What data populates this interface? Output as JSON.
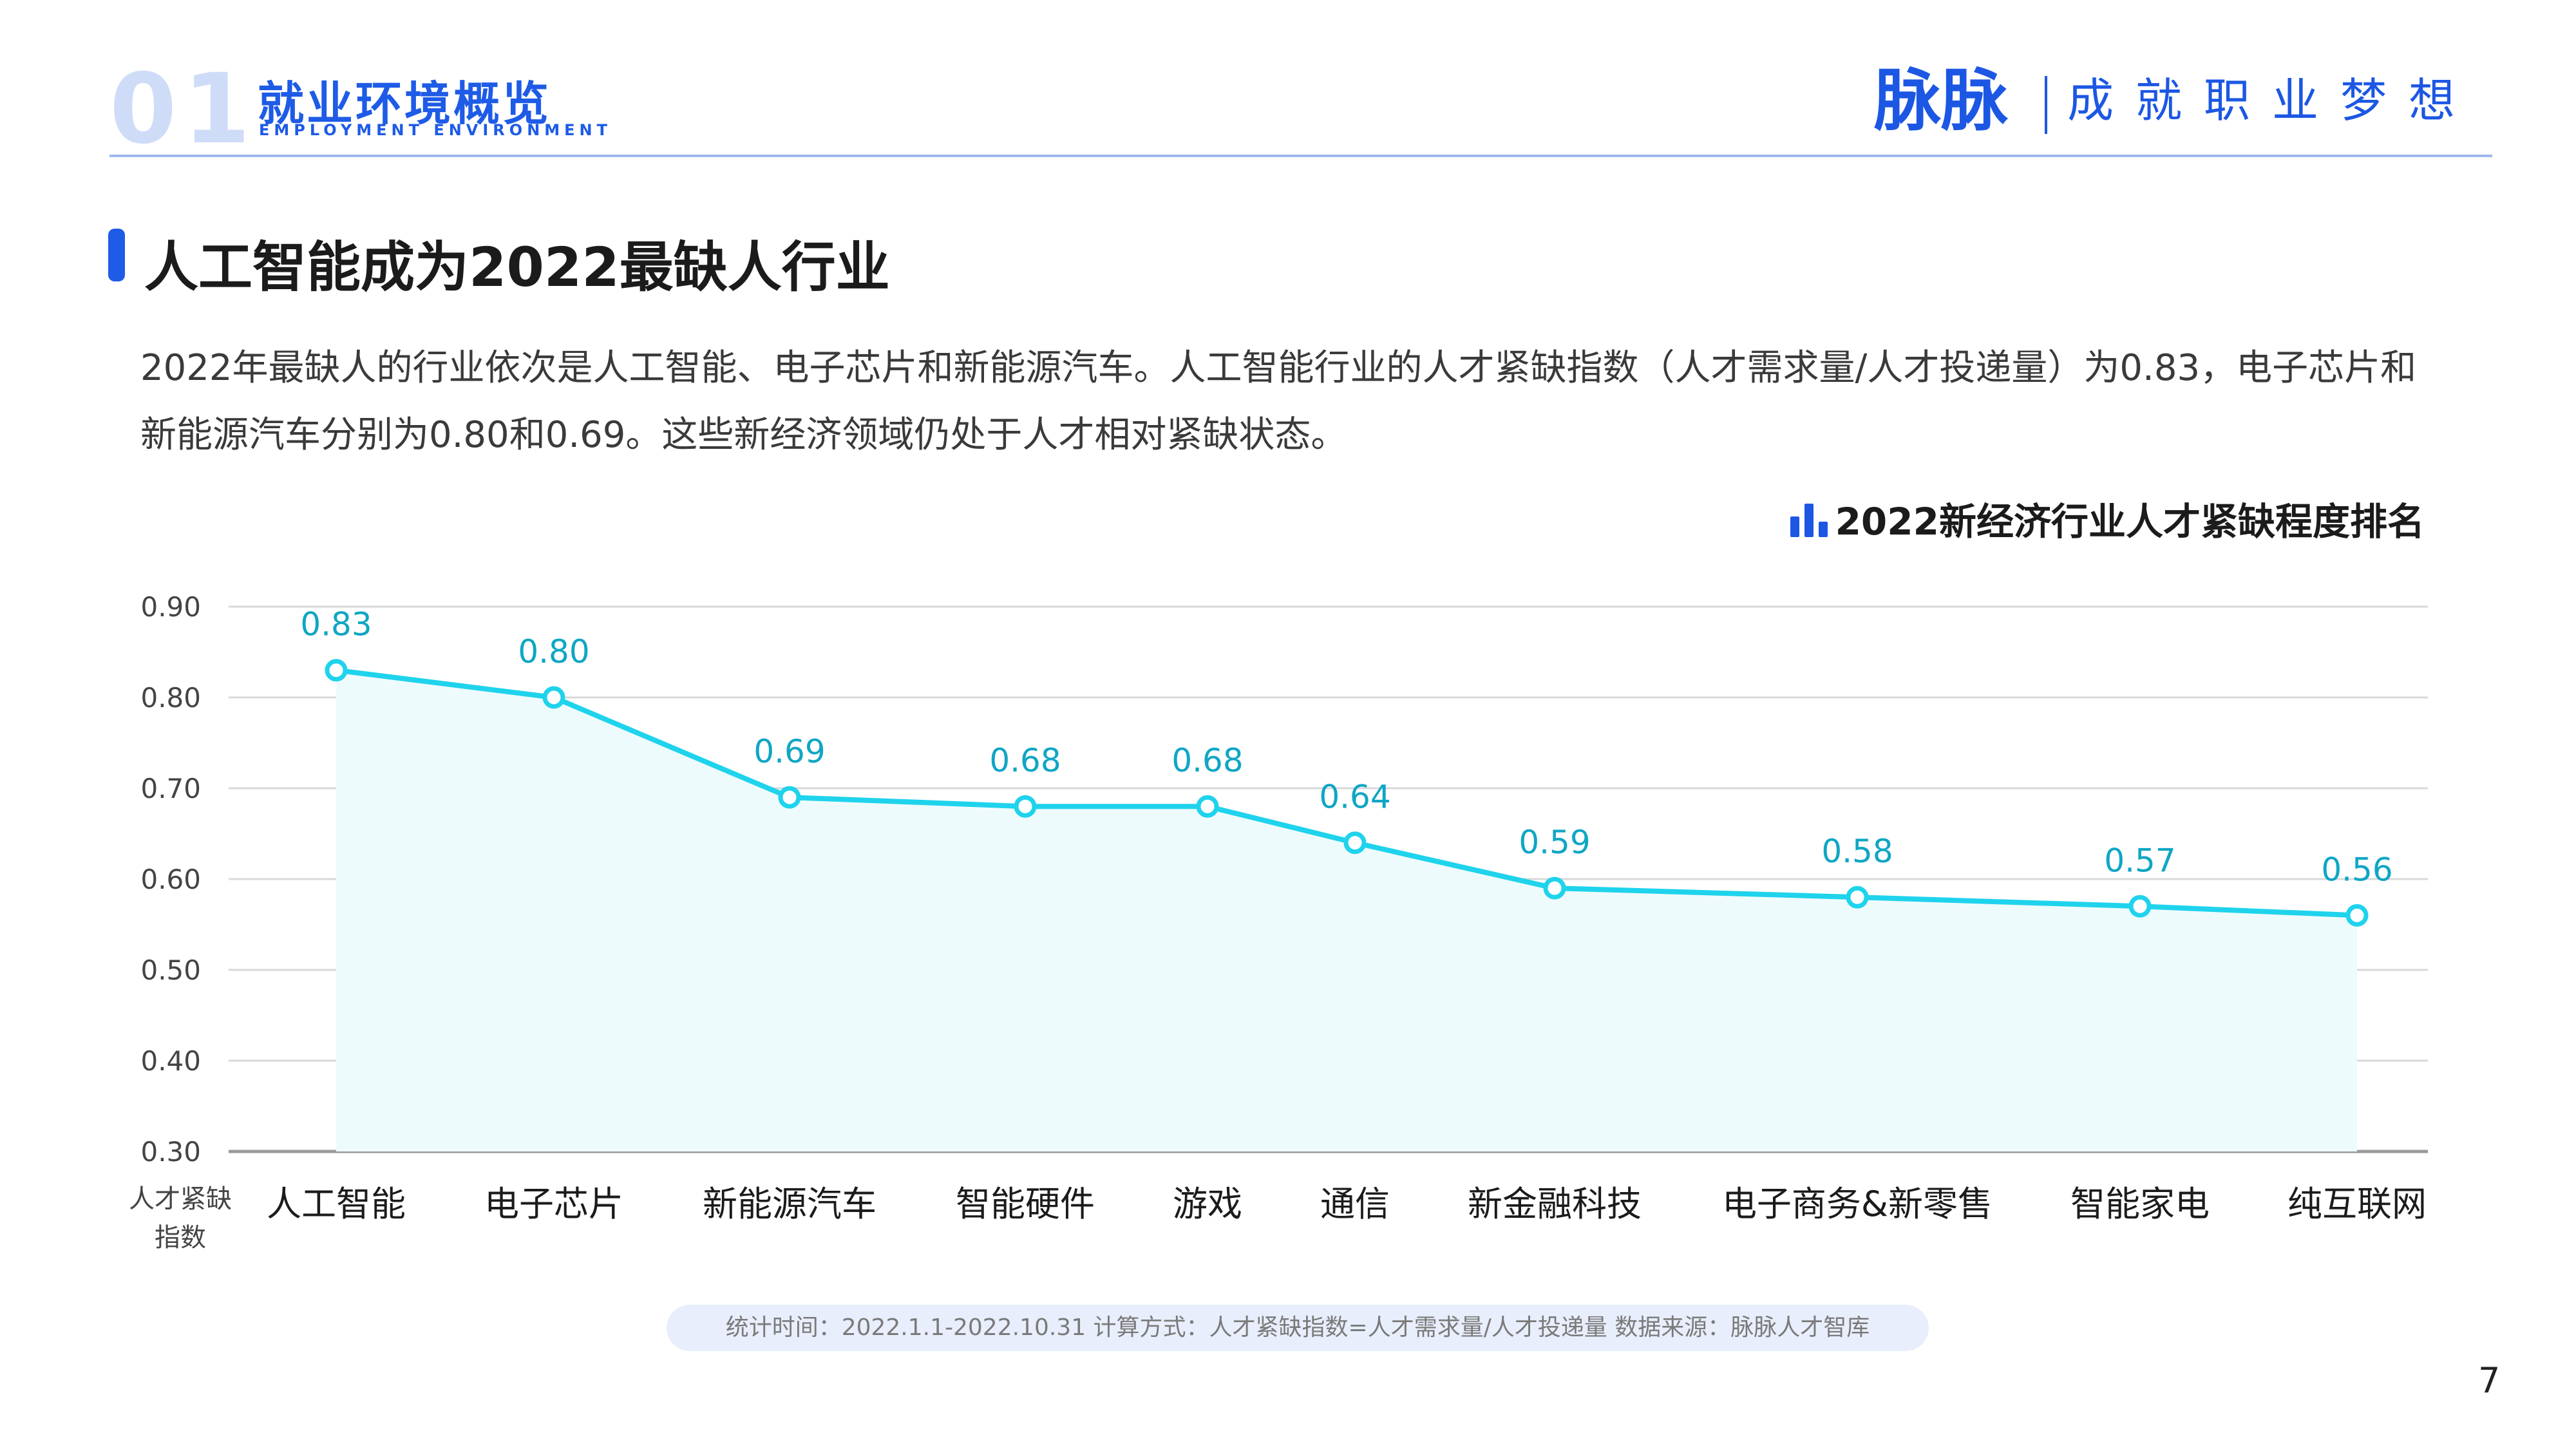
{
  "header": {
    "section_number": "01",
    "section_title": "就业环境概览",
    "section_subtitle": "EMPLOYMENT ENVIRONMENT",
    "brand_logo": "脉脉",
    "brand_slogan": "成就职业梦想"
  },
  "section": {
    "title": "人工智能成为2022最缺人行业",
    "description": "2022年最缺人的行业依次是人工智能、电子芯片和新能源汽车。人工智能行业的人才紧缺指数（人才需求量/人才投递量）为0.83，电子芯片和新能源汽车分别为0.80和0.69。这些新经济领域仍处于人才相对紧缺状态。"
  },
  "chart_data": {
    "type": "line",
    "title": "2022新经济行业人才紧缺程度排名",
    "ylabel": "人才紧缺指数",
    "categories": [
      "人工智能",
      "电子芯片",
      "新能源汽车",
      "智能硬件",
      "游戏",
      "通信",
      "新金融科技",
      "电子商务&新零售",
      "智能家电",
      "纯互联网"
    ],
    "values": [
      0.83,
      0.8,
      0.69,
      0.68,
      0.68,
      0.64,
      0.59,
      0.58,
      0.57,
      0.56
    ],
    "value_labels": [
      "0.83",
      "0.80",
      "0.69",
      "0.68",
      "0.68",
      "0.64",
      "0.59",
      "0.58",
      "0.57",
      "0.56"
    ],
    "ylim": [
      0.3,
      0.9
    ],
    "yticks": [
      "0.30",
      "0.40",
      "0.50",
      "0.60",
      "0.70",
      "0.80",
      "0.90"
    ],
    "grid": true,
    "area_fill": true,
    "colors": {
      "line": "#1fd3ec",
      "fill": "#eefbfd",
      "label": "#0fa6c4",
      "grid": "#d9d9d9",
      "axis": "#9a9a9a"
    }
  },
  "footer": {
    "note": "统计时间：2022.1.1-2022.10.31    计算方式：人才紧缺指数=人才需求量/人才投递量    数据来源：脉脉人才智库"
  },
  "page_number": "7",
  "colors": {
    "brand": "#1e5be6",
    "icon": "#1c57e4"
  }
}
